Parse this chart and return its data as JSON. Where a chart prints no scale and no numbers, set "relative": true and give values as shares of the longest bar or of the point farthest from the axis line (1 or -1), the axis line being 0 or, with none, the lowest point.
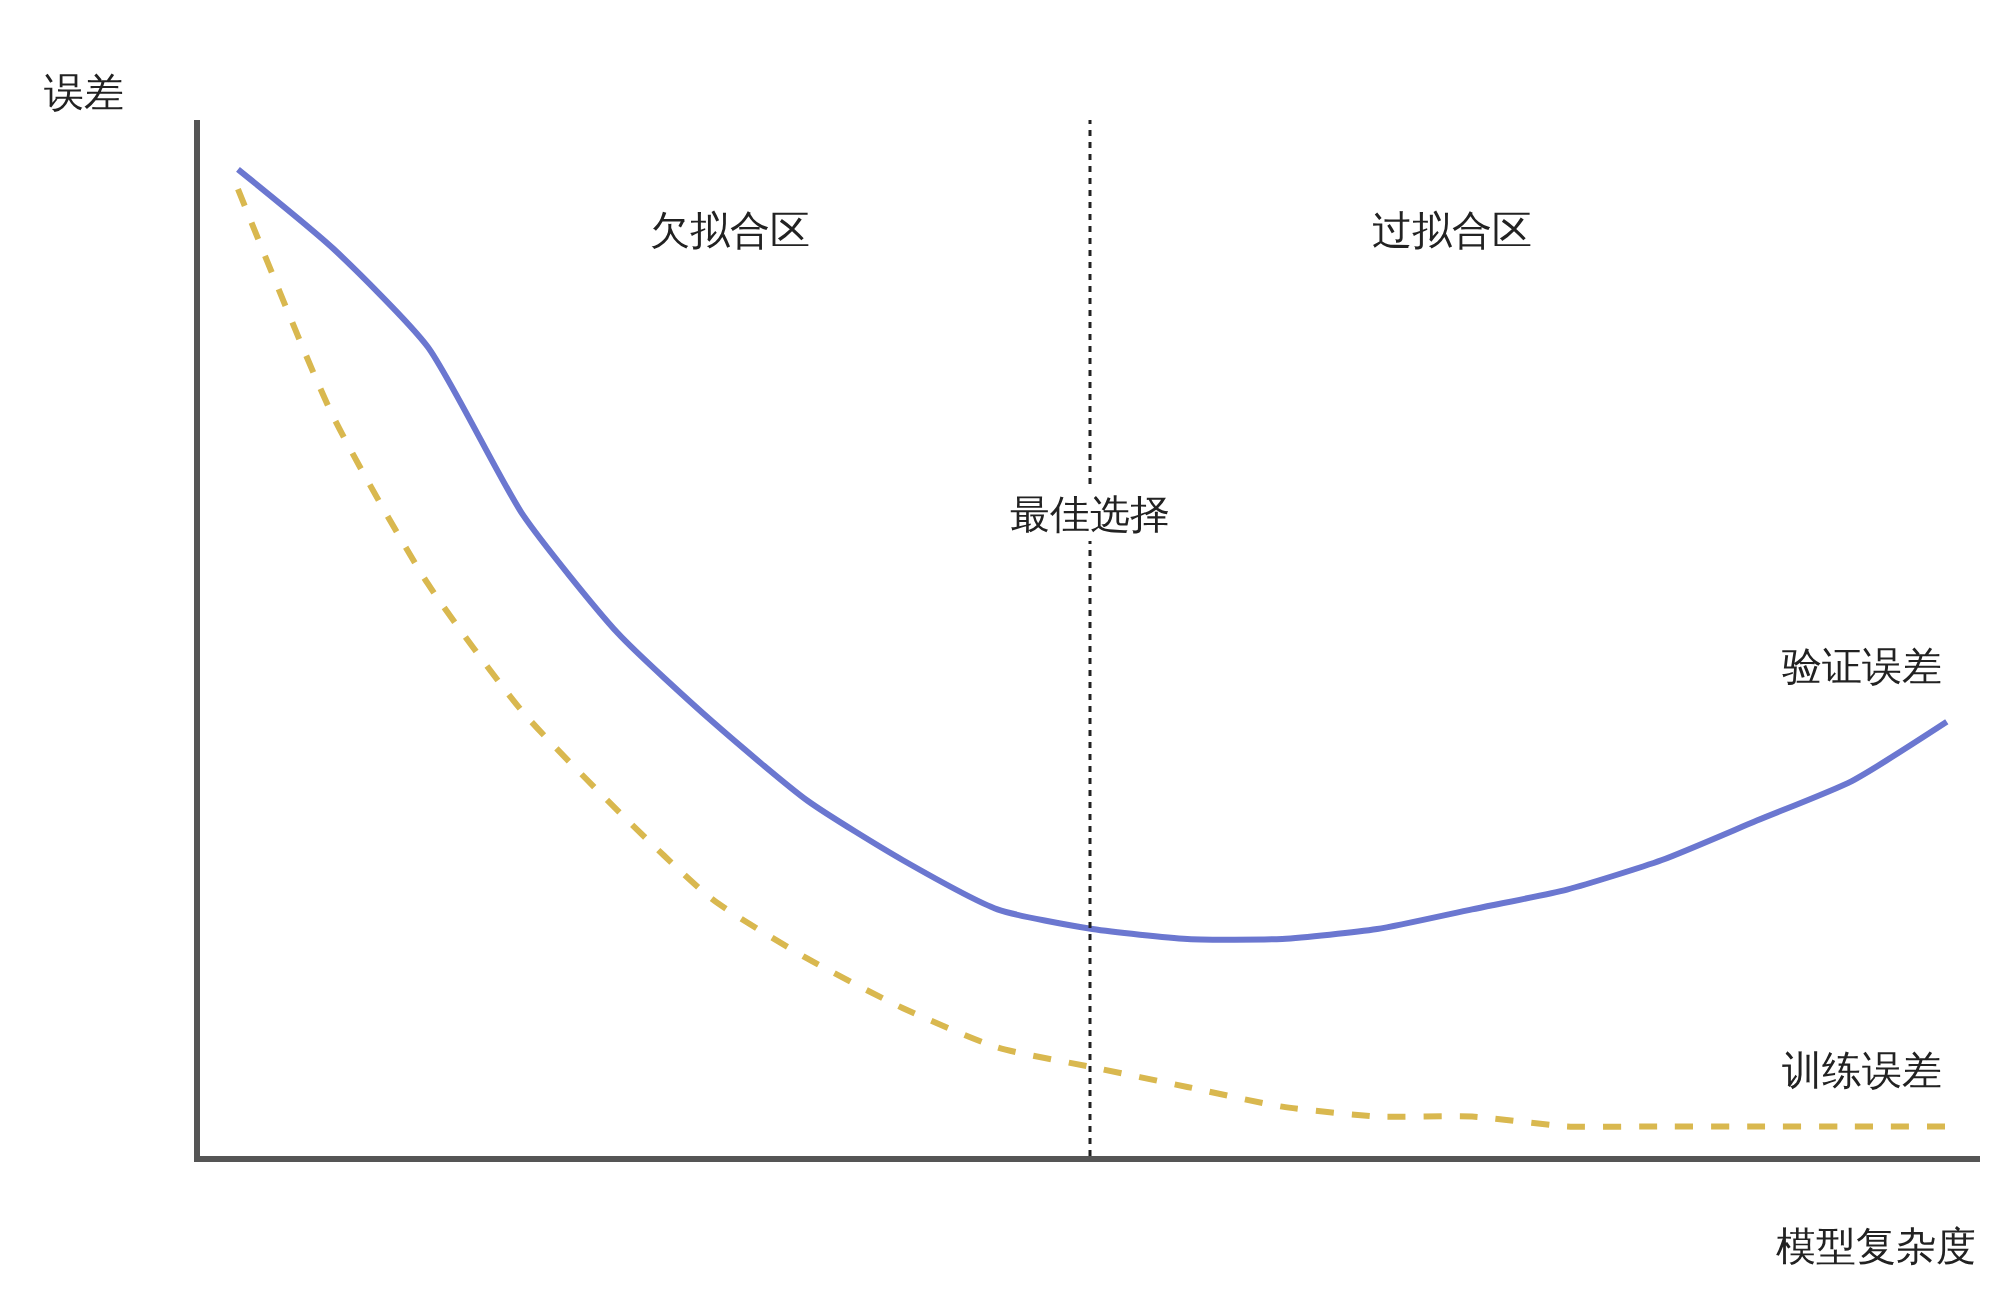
{
  "chart_data": {
    "type": "line",
    "relative": true,
    "xlabel": "模型复杂度",
    "ylabel": "误差",
    "categories": [
      null,
      null,
      null,
      null,
      null,
      null,
      null,
      null,
      null,
      null,
      null,
      null,
      null,
      null,
      null,
      null,
      null,
      null,
      null
    ],
    "series": [
      {
        "name": "验证误差",
        "color": "#6b77d0",
        "line_style": "solid",
        "values": [
          1.0,
          0.92,
          0.82,
          0.65,
          0.53,
          0.44,
          0.36,
          0.3,
          0.25,
          0.23,
          0.22,
          0.22,
          0.23,
          0.25,
          0.27,
          0.3,
          0.34,
          0.38,
          0.44
        ]
      },
      {
        "name": "训练误差",
        "color": "#d9b84f",
        "line_style": "dashed",
        "values": [
          0.98,
          0.75,
          0.58,
          0.45,
          0.35,
          0.26,
          0.2,
          0.15,
          0.11,
          0.09,
          0.07,
          0.05,
          0.04,
          0.04,
          0.03,
          0.03,
          0.03,
          0.03,
          0.03
        ]
      }
    ],
    "annotations": [
      "欠拟合区",
      "过拟合区",
      "最佳选择"
    ],
    "legend": false,
    "marker": "none"
  }
}
